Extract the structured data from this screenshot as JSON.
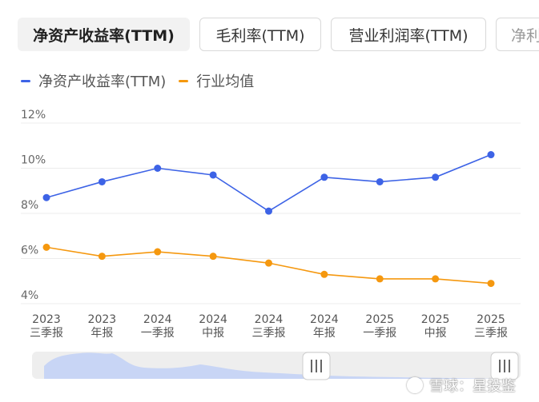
{
  "tabs": [
    {
      "label": "净资产收益率(TTM)",
      "active": true
    },
    {
      "label": "毛利率(TTM)",
      "active": false
    },
    {
      "label": "营业利润率(TTM)",
      "active": false
    },
    {
      "label": "净利",
      "active": false
    }
  ],
  "watermark": "雪球：星投鉴",
  "colors": {
    "series_roe": "#3d63e6",
    "series_industry": "#f5980f",
    "slider_fill": "#c8d5f5"
  },
  "chart_data": {
    "type": "line",
    "categories": [
      [
        "2023",
        "三季报"
      ],
      [
        "2023",
        "年报"
      ],
      [
        "2024",
        "一季报"
      ],
      [
        "2024",
        "中报"
      ],
      [
        "2024",
        "三季报"
      ],
      [
        "2024",
        "年报"
      ],
      [
        "2025",
        "一季报"
      ],
      [
        "2025",
        "中报"
      ],
      [
        "2025",
        "三季报"
      ]
    ],
    "y_ticks": [
      "12%",
      "10%",
      "8%",
      "6%",
      "4%"
    ],
    "ylim": [
      4,
      12
    ],
    "grid": true,
    "legend_position": "top-left",
    "series": [
      {
        "name": "净资产收益率(TTM)",
        "color": "#3d63e6",
        "values": [
          8.7,
          9.4,
          10.0,
          9.7,
          8.1,
          9.6,
          9.4,
          9.6,
          10.6
        ]
      },
      {
        "name": "行业均值",
        "color": "#f5980f",
        "values": [
          6.5,
          6.1,
          6.3,
          6.1,
          5.8,
          5.3,
          5.1,
          5.1,
          4.9
        ]
      }
    ]
  }
}
